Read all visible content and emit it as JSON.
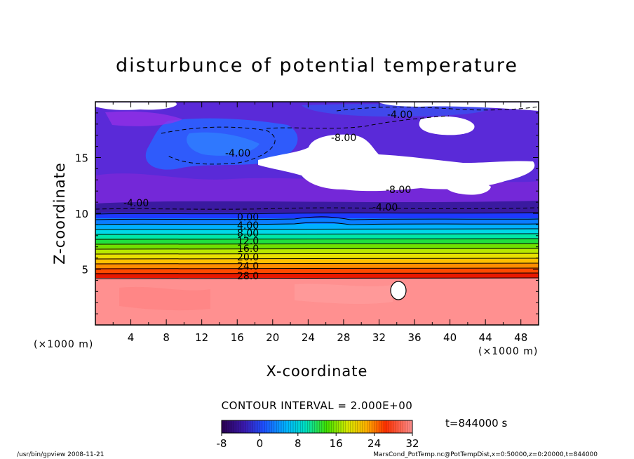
{
  "chart_data": {
    "type": "heatmap",
    "title": "disturbunce of potential temperature",
    "xlabel": "X-coordinate",
    "ylabel": "Z-coordinate",
    "x_unit": "(×1000 m)",
    "y_unit": "(×1000 m)",
    "xlim": [
      0,
      50
    ],
    "ylim": [
      0,
      20
    ],
    "x_ticks": [
      "4",
      "8",
      "12",
      "16",
      "20",
      "24",
      "28",
      "32",
      "36",
      "40",
      "44",
      "48"
    ],
    "y_ticks": [
      "5",
      "10",
      "15"
    ],
    "contour_interval_label": "CONTOUR INTERVAL = 2.000E+00",
    "time_label": "t=844000 s",
    "colorbar": {
      "min": -8,
      "max": 32,
      "ticks": [
        "-8",
        "0",
        "8",
        "16",
        "24",
        "32"
      ]
    },
    "contour_labels": [
      "-4.00",
      "-8.00",
      "-4.00",
      "-8.00",
      "-4.00",
      "-4.00",
      "0.00",
      "4.00",
      "8.00",
      "12.0",
      "16.0",
      "20.0",
      "24.0",
      "28.0"
    ],
    "layers": [
      {
        "z_from": 0.0,
        "z_to": 4.2,
        "value": 31
      },
      {
        "z_from": 4.2,
        "z_to": 10.0,
        "value_from": 30,
        "value_to": 0
      },
      {
        "z_from": 10.0,
        "z_to": 20.0,
        "value": -6
      }
    ]
  },
  "footer": {
    "left": "/usr/bin/gpview   2008-11-21",
    "right": "MarsCond_PotTemp.nc@PotTempDist,x=0:50000,z=0:20000,t=844000"
  }
}
